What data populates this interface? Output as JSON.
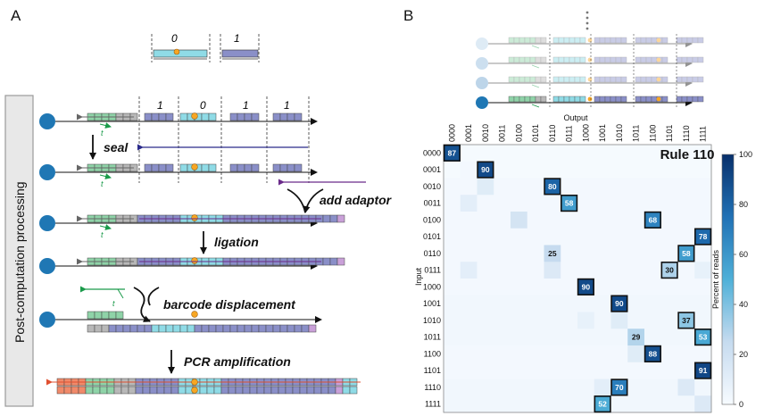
{
  "panel_a": {
    "label": "A",
    "bit_examples": [
      "0",
      "1"
    ],
    "sidebar_label": "Post-computation processing",
    "top_bits": [
      "1",
      "0",
      "1",
      "1"
    ],
    "steps": [
      "seal",
      "add adaptor",
      "ligation",
      "barcode displacement",
      "PCR amplification"
    ]
  },
  "panel_b": {
    "label": "B",
    "title": "Rule 110",
    "xlabel": "Output",
    "ylabel": "Input",
    "colorbar_label": "Percent of reads",
    "colorbar_ticks": [
      "0",
      "20",
      "40",
      "60",
      "80",
      "100"
    ]
  },
  "colors": {
    "green": "#8fd3a8",
    "gray": "#b8b8b8",
    "navy": "#8a8fc8",
    "cyan": "#8fdbe6",
    "orange": "#f7a623",
    "purple": "#c9a0d8",
    "blue_dot": "#1f77b4",
    "red": "#f08a6a"
  },
  "chart_data": {
    "type": "heatmap",
    "title": "Rule 110",
    "xlabel": "Output",
    "ylabel": "Input",
    "rows": [
      "0000",
      "0001",
      "0010",
      "0011",
      "0100",
      "0101",
      "0110",
      "0111",
      "1000",
      "1001",
      "1010",
      "1011",
      "1100",
      "1101",
      "1110",
      "1111"
    ],
    "cols": [
      "0000",
      "0001",
      "0010",
      "0011",
      "0100",
      "0101",
      "0110",
      "0111",
      "1000",
      "1001",
      "1010",
      "1011",
      "1100",
      "1101",
      "1110",
      "1111"
    ],
    "zlim": [
      0,
      100
    ],
    "colorbar_label": "Percent of reads",
    "values": [
      [
        87,
        1,
        1,
        1,
        1,
        1,
        1,
        1,
        1,
        1,
        1,
        1,
        1,
        1,
        1,
        1
      ],
      [
        1,
        2,
        90,
        1,
        1,
        1,
        1,
        1,
        1,
        1,
        1,
        1,
        1,
        1,
        1,
        1
      ],
      [
        2,
        2,
        12,
        2,
        2,
        2,
        80,
        2,
        2,
        2,
        2,
        2,
        2,
        2,
        2,
        2
      ],
      [
        2,
        10,
        2,
        2,
        2,
        2,
        2,
        58,
        2,
        2,
        2,
        2,
        2,
        2,
        2,
        2
      ],
      [
        2,
        2,
        2,
        2,
        18,
        2,
        2,
        2,
        2,
        2,
        2,
        2,
        68,
        2,
        2,
        2
      ],
      [
        2,
        2,
        2,
        2,
        2,
        2,
        2,
        2,
        2,
        2,
        2,
        2,
        2,
        2,
        2,
        78
      ],
      [
        2,
        2,
        2,
        2,
        2,
        2,
        25,
        2,
        2,
        2,
        2,
        2,
        2,
        2,
        58,
        2
      ],
      [
        2,
        10,
        2,
        2,
        2,
        2,
        14,
        2,
        2,
        2,
        2,
        2,
        2,
        30,
        2,
        8
      ],
      [
        2,
        2,
        2,
        2,
        2,
        2,
        2,
        2,
        90,
        2,
        2,
        2,
        2,
        2,
        2,
        2
      ],
      [
        3,
        3,
        3,
        3,
        3,
        3,
        3,
        3,
        3,
        3,
        90,
        3,
        3,
        3,
        3,
        3
      ],
      [
        3,
        3,
        3,
        3,
        3,
        3,
        3,
        3,
        8,
        3,
        12,
        3,
        3,
        3,
        37,
        3
      ],
      [
        3,
        3,
        3,
        3,
        3,
        3,
        3,
        3,
        3,
        3,
        3,
        29,
        3,
        3,
        3,
        53
      ],
      [
        2,
        2,
        2,
        2,
        2,
        2,
        2,
        2,
        2,
        2,
        2,
        12,
        88,
        2,
        2,
        2
      ],
      [
        2,
        2,
        2,
        2,
        2,
        2,
        2,
        2,
        2,
        2,
        2,
        2,
        2,
        2,
        2,
        91
      ],
      [
        3,
        3,
        3,
        3,
        3,
        3,
        3,
        3,
        3,
        10,
        70,
        3,
        3,
        3,
        14,
        3
      ],
      [
        3,
        3,
        3,
        3,
        3,
        3,
        3,
        3,
        3,
        52,
        3,
        3,
        3,
        3,
        3,
        14
      ]
    ],
    "labeled_cells": [
      {
        "row": 0,
        "col": 0,
        "value": 87,
        "boxed": true
      },
      {
        "row": 1,
        "col": 2,
        "value": 90,
        "boxed": true
      },
      {
        "row": 2,
        "col": 6,
        "value": 80,
        "boxed": true
      },
      {
        "row": 3,
        "col": 7,
        "value": 58,
        "boxed": true
      },
      {
        "row": 4,
        "col": 12,
        "value": 68,
        "boxed": true
      },
      {
        "row": 5,
        "col": 15,
        "value": 78,
        "boxed": true
      },
      {
        "row": 6,
        "col": 6,
        "value": 25,
        "boxed": false
      },
      {
        "row": 6,
        "col": 14,
        "value": 58,
        "boxed": true
      },
      {
        "row": 7,
        "col": 13,
        "value": 30,
        "boxed": true
      },
      {
        "row": 8,
        "col": 8,
        "value": 90,
        "boxed": true
      },
      {
        "row": 9,
        "col": 10,
        "value": 90,
        "boxed": true
      },
      {
        "row": 10,
        "col": 14,
        "value": 37,
        "boxed": true
      },
      {
        "row": 11,
        "col": 11,
        "value": 29,
        "boxed": false
      },
      {
        "row": 11,
        "col": 15,
        "value": 53,
        "boxed": true
      },
      {
        "row": 12,
        "col": 12,
        "value": 88,
        "boxed": true
      },
      {
        "row": 13,
        "col": 15,
        "value": 91,
        "boxed": true
      },
      {
        "row": 14,
        "col": 10,
        "value": 70,
        "boxed": true
      },
      {
        "row": 15,
        "col": 9,
        "value": 52,
        "boxed": true
      }
    ]
  }
}
